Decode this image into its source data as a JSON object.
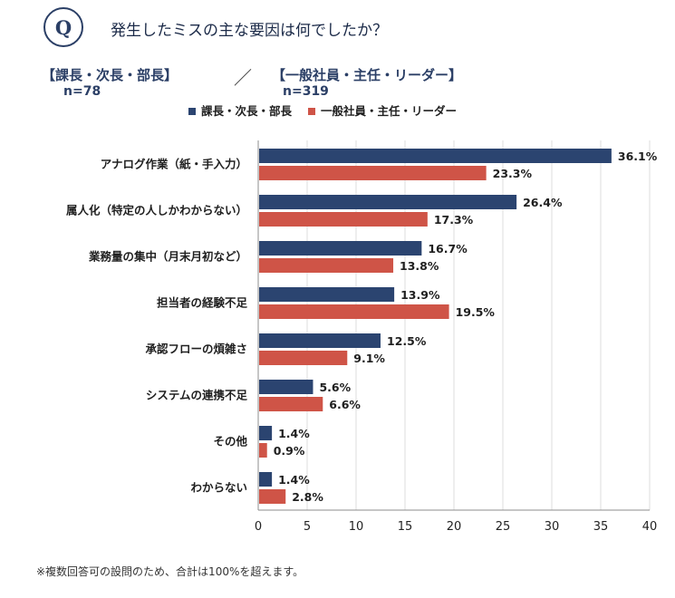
{
  "question": {
    "badge": "Q",
    "text": "発生したミスの主な要因は何でしたか？"
  },
  "groups": {
    "left_label": "【課長・次長・部長】",
    "left_n": "n=78",
    "separator": "／",
    "right_label": "【一般社員・主任・リーダー】",
    "right_n": "n=319"
  },
  "footnote": "※複数回答可の設問のため、合計は100%を超えます。",
  "chart_data": {
    "type": "bar",
    "orientation": "horizontal",
    "categories": [
      "アナログ作業（紙・手入力）",
      "属人化（特定の人しかわからない）",
      "業務量の集中（月末月初など）",
      "担当者の経験不足",
      "承認フローの煩雑さ",
      "システムの連携不足",
      "その他",
      "わからない"
    ],
    "series": [
      {
        "name": "課長・次長・部長",
        "color": "#2b4470",
        "values": [
          36.1,
          26.4,
          16.7,
          13.9,
          12.5,
          5.6,
          1.4,
          1.4
        ],
        "labels": [
          "36.1%",
          "26.4%",
          "16.7%",
          "13.9%",
          "12.5%",
          "5.6%",
          "1.4%",
          "1.4%"
        ]
      },
      {
        "name": "一般社員・主任・リーダー",
        "color": "#cf5447",
        "values": [
          23.3,
          17.3,
          13.8,
          19.5,
          9.1,
          6.6,
          0.9,
          2.8
        ],
        "labels": [
          "23.3%",
          "17.3%",
          "13.8%",
          "19.5%",
          "9.1%",
          "6.6%",
          "0.9%",
          "2.8%"
        ]
      }
    ],
    "xlim": [
      0,
      40
    ],
    "xticks": [
      0,
      5,
      10,
      15,
      20,
      25,
      30,
      35,
      40
    ],
    "xtick_labels": [
      "0",
      "5",
      "10",
      "15",
      "20",
      "25",
      "30",
      "35",
      "40"
    ],
    "legend_position": "top",
    "grid": true,
    "title": "",
    "xlabel": "",
    "ylabel": ""
  }
}
